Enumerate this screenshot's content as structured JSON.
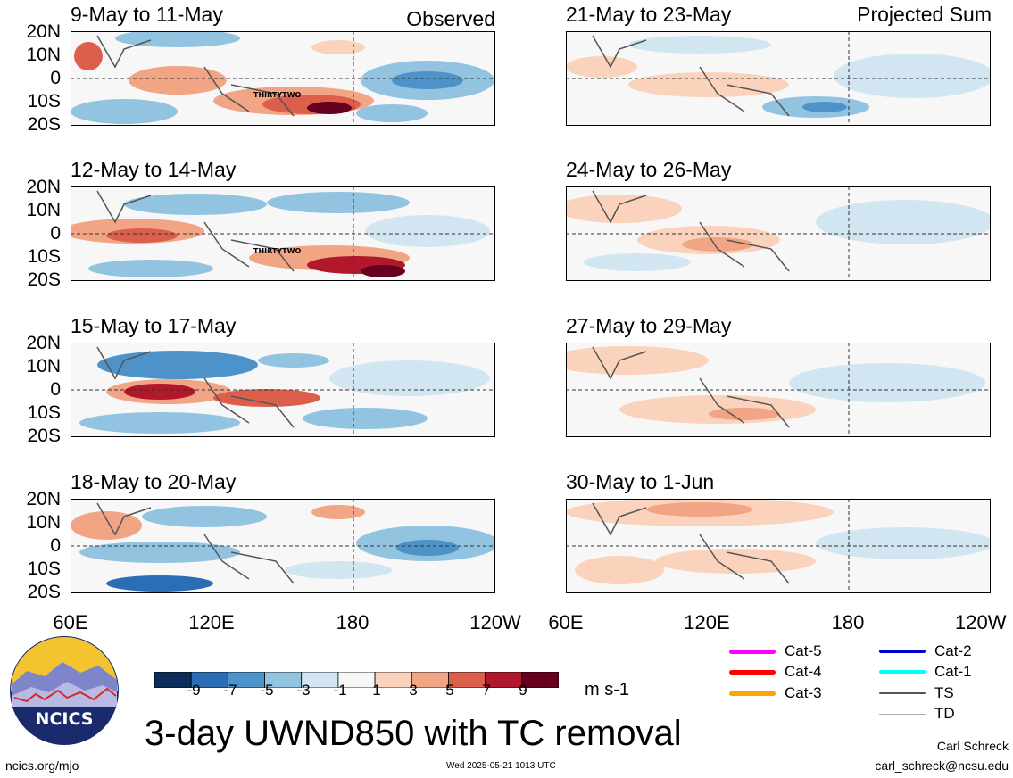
{
  "header": {
    "left_tag": "Observed",
    "right_tag": "Projected Sum"
  },
  "panels_left": [
    {
      "label": "9-May to 11-May",
      "storm": "THIRTYTWO"
    },
    {
      "label": "12-May to 14-May",
      "storm": "THIRTYTWO"
    },
    {
      "label": "15-May to 17-May",
      "storm": ""
    },
    {
      "label": "18-May to 20-May",
      "storm": ""
    }
  ],
  "panels_right": [
    {
      "label": "21-May to 23-May"
    },
    {
      "label": "24-May to 26-May"
    },
    {
      "label": "27-May to 29-May"
    },
    {
      "label": "30-May to 1-Jun"
    }
  ],
  "axes": {
    "lat_labels": [
      "20N",
      "10N",
      "0",
      "10S",
      "20S"
    ],
    "lon_labels": [
      "60E",
      "120E",
      "180",
      "120W"
    ]
  },
  "colorbar": {
    "ticks": [
      "-9",
      "-7",
      "-5",
      "-3",
      "-1",
      "1",
      "3",
      "5",
      "7",
      "9"
    ],
    "colors": [
      "#0b2d5a",
      "#2a6fb5",
      "#4d93c9",
      "#92c3e0",
      "#d2e6f2",
      "#f7f7f7",
      "#fbd3bd",
      "#f1a585",
      "#dc5f4c",
      "#b2182b",
      "#67001f"
    ],
    "units": "m s-1"
  },
  "title": "3-day UWND850 with TC removal",
  "legend": {
    "col1": [
      {
        "label": "Cat-5",
        "color": "#ff00ff"
      },
      {
        "label": "Cat-4",
        "color": "#ff0000"
      },
      {
        "label": "Cat-3",
        "color": "#ffa500"
      }
    ],
    "col2": [
      {
        "label": "Cat-2",
        "color": "#0000cc"
      },
      {
        "label": "Cat-1",
        "color": "#00ffff"
      },
      {
        "label": "TS",
        "color": "#555555"
      },
      {
        "label": "TD",
        "color": "#aaaaaa"
      }
    ]
  },
  "logo": {
    "text": "NCICS"
  },
  "footer": {
    "url": "ncics.org/mjo",
    "timestamp": "Wed 2025-05-21 1013 UTC",
    "author": "Carl Schreck",
    "email": "carl_schreck@ncsu.edu"
  }
}
